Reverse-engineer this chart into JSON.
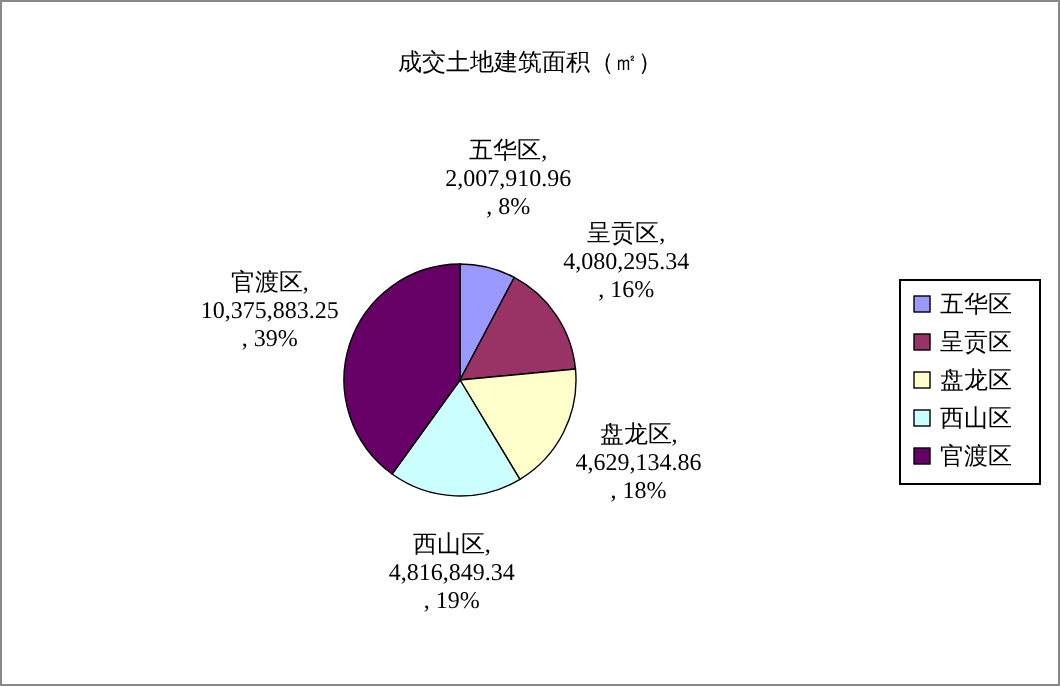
{
  "chart_data": {
    "type": "pie",
    "title": "成交土地建筑面积（㎡）",
    "categories": [
      "五华区",
      "呈贡区",
      "盘龙区",
      "西山区",
      "官渡区"
    ],
    "values": [
      2007910.96,
      4080295.34,
      4629134.86,
      4816849.34,
      10375883.25
    ],
    "colors": [
      "#9999ff",
      "#993366",
      "#ffffcc",
      "#ccffff",
      "#660066"
    ],
    "value_labels": [
      "五华区, 2,007,910.96, 8%",
      "呈贡区, 4,080,295.34, 16%",
      "盘龙区, 4,629,134.86, 18%",
      "西山区, 4,816,849.34, 19%",
      "官渡区, 10,375,883.25, 39%"
    ],
    "legend": "right"
  }
}
